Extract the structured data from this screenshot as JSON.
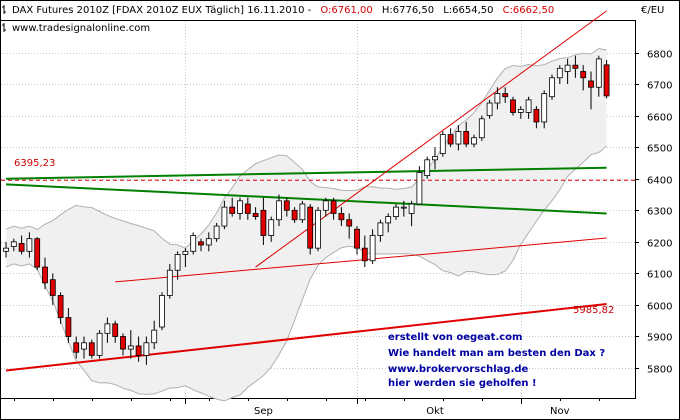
{
  "header": {
    "symbol": "DAX Futures 2010Z [FDAX 2010Z EUX  Täglich] 16.11.2010 -",
    "open": "O:6761,00",
    "high": "H:6776,50",
    "low": "L:6654,50",
    "close": "C:6662,50",
    "website": "www.tradesignalonline.com",
    "currency": "€/EU"
  },
  "notes": [
    "erstellt von oegeat.com",
    "Wie handelt man am besten den Dax ?",
    "www.brokervorschlag.de",
    "hier werden sie geholfen !"
  ],
  "level_labels": {
    "resistance": "6395,23",
    "support": "5985,82"
  },
  "colors": {
    "bull": "#ffffff",
    "bear": "#e00000",
    "candle_outline": "#000000",
    "green_lines": "#008000",
    "red_lines": "#e00000",
    "band": "#b0b0b0",
    "band_fill": "#f0f0f0",
    "grid": "#c8c8c8",
    "note_text": "#0000a0"
  },
  "chart_data": {
    "type": "candlestick",
    "x_axis_labels": [
      "Sep",
      "Okt",
      "Nov"
    ],
    "y_ticks": [
      5800,
      5900,
      6000,
      6100,
      6200,
      6300,
      6400,
      6500,
      6600,
      6700,
      6800
    ],
    "ylim": [
      5705,
      6900
    ],
    "grid": true,
    "start_date": "2010-07-30",
    "dates": [
      "2010-07-30",
      "2010-08-02",
      "2010-08-03",
      "2010-08-04",
      "2010-08-05",
      "2010-08-06",
      "2010-08-09",
      "2010-08-10",
      "2010-08-11",
      "2010-08-12",
      "2010-08-13",
      "2010-08-16",
      "2010-08-17",
      "2010-08-18",
      "2010-08-19",
      "2010-08-20",
      "2010-08-23",
      "2010-08-24",
      "2010-08-25",
      "2010-08-26",
      "2010-08-27",
      "2010-08-30",
      "2010-08-31",
      "2010-09-01",
      "2010-09-02",
      "2010-09-03",
      "2010-09-06",
      "2010-09-07",
      "2010-09-08",
      "2010-09-09",
      "2010-09-10",
      "2010-09-13",
      "2010-09-14",
      "2010-09-15",
      "2010-09-16",
      "2010-09-17",
      "2010-09-20",
      "2010-09-21",
      "2010-09-22",
      "2010-09-23",
      "2010-09-24",
      "2010-09-27",
      "2010-09-28",
      "2010-09-29",
      "2010-09-30",
      "2010-10-01",
      "2010-10-04",
      "2010-10-05",
      "2010-10-06",
      "2010-10-07",
      "2010-10-08",
      "2010-10-11",
      "2010-10-12",
      "2010-10-13",
      "2010-10-14",
      "2010-10-15",
      "2010-10-18",
      "2010-10-19",
      "2010-10-20",
      "2010-10-21",
      "2010-10-22",
      "2010-10-25",
      "2010-10-26",
      "2010-10-27",
      "2010-10-28",
      "2010-10-29",
      "2010-11-01",
      "2010-11-02",
      "2010-11-03",
      "2010-11-04",
      "2010-11-05",
      "2010-11-08",
      "2010-11-09",
      "2010-11-10",
      "2010-11-11",
      "2010-11-12",
      "2010-11-15",
      "2010-11-16"
    ],
    "ohlc": [
      [
        6170,
        6200,
        6150,
        6180
      ],
      [
        6185,
        6210,
        6170,
        6200
      ],
      [
        6195,
        6220,
        6160,
        6170
      ],
      [
        6170,
        6230,
        6150,
        6210
      ],
      [
        6210,
        6215,
        6110,
        6120
      ],
      [
        6120,
        6150,
        6050,
        6070
      ],
      [
        6080,
        6100,
        6000,
        6030
      ],
      [
        6030,
        6040,
        5940,
        5960
      ],
      [
        5960,
        5990,
        5880,
        5900
      ],
      [
        5880,
        5900,
        5830,
        5850
      ],
      [
        5860,
        5900,
        5830,
        5880
      ],
      [
        5880,
        5890,
        5830,
        5840
      ],
      [
        5840,
        5920,
        5830,
        5910
      ],
      [
        5910,
        5960,
        5880,
        5940
      ],
      [
        5940,
        5950,
        5880,
        5900
      ],
      [
        5900,
        5910,
        5840,
        5860
      ],
      [
        5860,
        5920,
        5830,
        5870
      ],
      [
        5870,
        5900,
        5820,
        5840
      ],
      [
        5840,
        5900,
        5810,
        5880
      ],
      [
        5880,
        5950,
        5860,
        5920
      ],
      [
        5930,
        6040,
        5920,
        6030
      ],
      [
        6030,
        6130,
        6020,
        6110
      ],
      [
        6110,
        6170,
        6080,
        6160
      ],
      [
        6160,
        6180,
        6120,
        6170
      ],
      [
        6170,
        6230,
        6160,
        6220
      ],
      [
        6200,
        6210,
        6170,
        6190
      ],
      [
        6190,
        6230,
        6170,
        6210
      ],
      [
        6210,
        6260,
        6200,
        6250
      ],
      [
        6250,
        6330,
        6240,
        6310
      ],
      [
        6310,
        6340,
        6280,
        6290
      ],
      [
        6290,
        6340,
        6270,
        6330
      ],
      [
        6320,
        6340,
        6270,
        6290
      ],
      [
        6290,
        6310,
        6270,
        6280
      ],
      [
        6300,
        6340,
        6190,
        6220
      ],
      [
        6220,
        6280,
        6200,
        6270
      ],
      [
        6270,
        6350,
        6250,
        6330
      ],
      [
        6330,
        6340,
        6280,
        6300
      ],
      [
        6300,
        6310,
        6260,
        6270
      ],
      [
        6270,
        6330,
        6260,
        6320
      ],
      [
        6310,
        6320,
        6160,
        6180
      ],
      [
        6180,
        6310,
        6170,
        6300
      ],
      [
        6300,
        6340,
        6280,
        6330
      ],
      [
        6330,
        6340,
        6270,
        6290
      ],
      [
        6290,
        6310,
        6250,
        6270
      ],
      [
        6270,
        6290,
        6210,
        6250
      ],
      [
        6240,
        6250,
        6160,
        6180
      ],
      [
        6180,
        6220,
        6120,
        6140
      ],
      [
        6140,
        6240,
        6130,
        6220
      ],
      [
        6220,
        6270,
        6200,
        6260
      ],
      [
        6260,
        6290,
        6230,
        6280
      ],
      [
        6280,
        6320,
        6270,
        6310
      ],
      [
        6310,
        6330,
        6280,
        6310
      ],
      [
        6290,
        6330,
        6250,
        6320
      ],
      [
        6320,
        6440,
        6320,
        6420
      ],
      [
        6410,
        6470,
        6400,
        6460
      ],
      [
        6460,
        6500,
        6430,
        6470
      ],
      [
        6480,
        6550,
        6470,
        6540
      ],
      [
        6540,
        6560,
        6500,
        6510
      ],
      [
        6510,
        6570,
        6490,
        6550
      ],
      [
        6550,
        6580,
        6500,
        6510
      ],
      [
        6510,
        6540,
        6500,
        6530
      ],
      [
        6530,
        6600,
        6520,
        6590
      ],
      [
        6600,
        6650,
        6590,
        6640
      ],
      [
        6640,
        6690,
        6620,
        6670
      ],
      [
        6670,
        6690,
        6640,
        6660
      ],
      [
        6650,
        6660,
        6600,
        6610
      ],
      [
        6610,
        6630,
        6590,
        6620
      ],
      [
        6610,
        6660,
        6590,
        6650
      ],
      [
        6620,
        6630,
        6560,
        6580
      ],
      [
        6580,
        6680,
        6560,
        6670
      ],
      [
        6660,
        6730,
        6650,
        6720
      ],
      [
        6720,
        6760,
        6700,
        6750
      ],
      [
        6740,
        6780,
        6700,
        6760
      ],
      [
        6760,
        6790,
        6720,
        6750
      ],
      [
        6740,
        6760,
        6680,
        6720
      ],
      [
        6710,
        6740,
        6620,
        6690
      ],
      [
        6690,
        6790,
        6660,
        6780
      ],
      [
        6761,
        6776.5,
        6654.5,
        6662.5
      ]
    ],
    "horizontal_level": 6395.23,
    "support_level": 5985.82,
    "trendlines": [
      {
        "color": "green",
        "from": [
          "2010-07-30",
          6400
        ],
        "to": [
          "2010-11-16",
          6435
        ]
      },
      {
        "color": "green",
        "from": [
          "2010-07-30",
          6382
        ],
        "to": [
          "2010-11-16",
          6290
        ]
      },
      {
        "color": "red",
        "from": [
          "2010-09-14",
          6120
        ],
        "to": [
          "2010-11-16",
          6932
        ]
      },
      {
        "color": "red",
        "from": [
          "2010-08-19",
          6073
        ],
        "to": [
          "2010-11-16",
          6212
        ]
      },
      {
        "color": "red",
        "from": [
          "2010-07-30",
          5792
        ],
        "to": [
          "2010-11-16",
          6003
        ]
      }
    ]
  }
}
